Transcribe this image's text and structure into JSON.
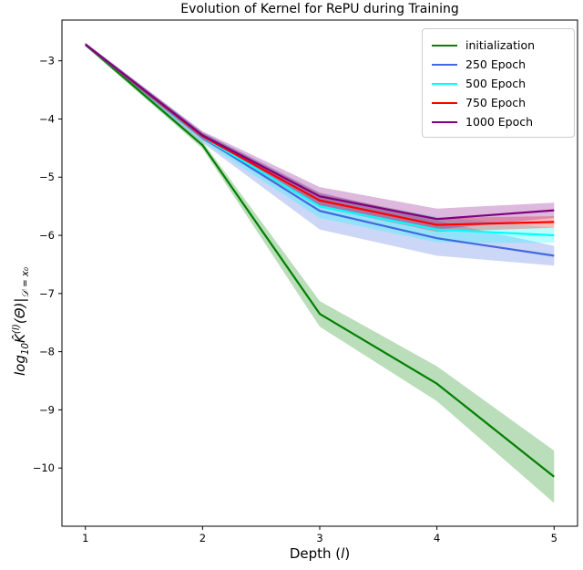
{
  "chart_data": {
    "type": "line",
    "title": "Evolution of Kernel for RePU during Training",
    "xlabel": "Depth (l)",
    "ylabel": "log10 K^(l)(Theta) | D = x0",
    "grid": false,
    "legend_position": "upper right",
    "xlim": [
      0.8,
      5.2
    ],
    "ylim": [
      -11.0,
      -2.3
    ],
    "x": [
      1,
      2,
      3,
      4,
      5
    ],
    "x_tick_labels": [
      "1",
      "2",
      "3",
      "4",
      "5"
    ],
    "y_ticks": [
      -3,
      -4,
      -5,
      -6,
      -7,
      -8,
      -9,
      -10
    ],
    "y_tick_labels": [
      "−3",
      "−4",
      "−5",
      "−6",
      "−7",
      "−8",
      "−9",
      "−10"
    ],
    "band_opacity": 0.27,
    "series": [
      {
        "id": "initialization",
        "name": "initialization",
        "color": "#008000",
        "values": [
          -2.72,
          -4.45,
          -7.35,
          -8.55,
          -10.15
        ],
        "band": [
          0.03,
          0.06,
          0.22,
          0.3,
          0.45
        ]
      },
      {
        "id": "epoch-250",
        "name": "250 Epoch",
        "color": "#4169e1",
        "values": [
          -2.72,
          -4.32,
          -5.58,
          -6.05,
          -6.35
        ],
        "band": [
          0.03,
          0.09,
          0.32,
          0.3,
          0.17
        ]
      },
      {
        "id": "epoch-500",
        "name": "500 Epoch",
        "color": "#00ffff",
        "values": [
          -2.72,
          -4.31,
          -5.5,
          -5.9,
          -6.0
        ],
        "band": [
          0.03,
          0.08,
          0.2,
          0.22,
          0.13
        ]
      },
      {
        "id": "epoch-750",
        "name": "750 Epoch",
        "color": "#ff0000",
        "values": [
          -2.72,
          -4.3,
          -5.4,
          -5.82,
          -5.77
        ],
        "band": [
          0.03,
          0.06,
          0.12,
          0.12,
          0.1
        ]
      },
      {
        "id": "epoch-1000",
        "name": "1000 Epoch",
        "color": "#800080",
        "values": [
          -2.72,
          -4.28,
          -5.33,
          -5.72,
          -5.57
        ],
        "band": [
          0.03,
          0.07,
          0.16,
          0.18,
          0.13
        ]
      }
    ]
  },
  "labels": {
    "xlabel_prefix": "Depth (",
    "xlabel_italic": "l",
    "xlabel_suffix": ")",
    "ylabel": {
      "log": "log",
      "log_sub": "10",
      "k": "K̂",
      "k_sup": "(l)",
      "theta": "(Θ)|",
      "cond_sub": "𝒟 = x₀"
    }
  }
}
